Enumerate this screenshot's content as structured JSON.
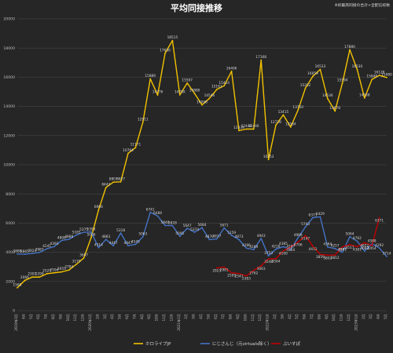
{
  "chart_data": {
    "type": "line",
    "title": "平均同接推移",
    "note": "※枠最高同接の合計÷全配信枠数",
    "ylim": [
      0,
      20000
    ],
    "yticks": [
      0,
      2000,
      4000,
      6000,
      8000,
      10000,
      12000,
      14000,
      16000,
      18000,
      20000
    ],
    "categories": [
      "2019年3月",
      "4月",
      "5月",
      "6月",
      "7月",
      "8月",
      "9月",
      "10月",
      "11月",
      "12月",
      "2020年1月",
      "2月",
      "3月",
      "4月",
      "5月",
      "6月",
      "7月",
      "8月",
      "9月",
      "10月",
      "11月",
      "12月",
      "2021年1月",
      "2月",
      "3月",
      "4月",
      "5月",
      "6月",
      "7月",
      "8月",
      "9月",
      "10月",
      "11月",
      "12月",
      "2022年1月",
      "2月",
      "3月",
      "4月",
      "5月",
      "6月",
      "7月",
      "8月",
      "9月",
      "10月",
      "11月",
      "12月",
      "2023年1月",
      "2月",
      "3月",
      "4月",
      "5月"
    ],
    "legend_position": "bottom",
    "series": [
      {
        "name": "ホロライブJP",
        "color": "#f2c200",
        "values": [
          1565,
          2066,
          2301,
          2299,
          2529,
          2594,
          2655,
          2784,
          3179,
          3607,
          5006,
          6906,
          8443,
          8807,
          8827,
          10784,
          11171,
          12911,
          15889,
          14776,
          17636,
          18515,
          14789,
          15597,
          14880,
          14098,
          14546,
          15161,
          15414,
          16406,
          12339,
          12446,
          12446,
          17168,
          10353,
          12718,
          13415,
          12584,
          13750,
          15252,
          16059,
          16533,
          14536,
          13678,
          15594,
          17880,
          16530,
          14568,
          15848,
          16128,
          15980
        ]
      },
      {
        "name": "にじさんじ（元virtuals除く）",
        "color": "#4472c4",
        "values": [
          3886,
          3865,
          3924,
          3987,
          4241,
          4393,
          4808,
          4888,
          5185,
          5375,
          5393,
          4314,
          4883,
          4447,
          5318,
          4447,
          4545,
          5063,
          6741,
          6486,
          5840,
          5828,
          5095,
          5647,
          5374,
          5684,
          4870,
          4917,
          5671,
          5159,
          4873,
          4286,
          4189,
          4943,
          3753,
          4216,
          4385,
          4197,
          4999,
          5743,
          6371,
          6429,
          4364,
          4257,
          3997,
          5064,
          4762,
          4082,
          4588,
          4292,
          3714
        ]
      },
      {
        "name": "ぶいすぽ",
        "color": "#c00000",
        "values": [
          null,
          null,
          null,
          null,
          null,
          null,
          null,
          null,
          null,
          null,
          null,
          null,
          null,
          null,
          null,
          null,
          null,
          null,
          null,
          null,
          null,
          null,
          null,
          null,
          null,
          null,
          null,
          2923,
          2981,
          2595,
          2541,
          2383,
          2762,
          3063,
          3548,
          3564,
          4100,
          4364,
          4706,
          5147,
          4412,
          3859,
          3802,
          3812,
          4371,
          4517,
          4381,
          4652,
          4454,
          6371,
          null
        ]
      }
    ]
  }
}
